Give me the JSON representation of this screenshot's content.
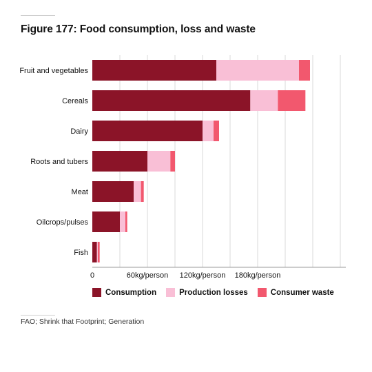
{
  "title": "Figure 177: Food consumption, loss and waste",
  "source": "FAO; Shrink that Footprint; Generation",
  "colors": {
    "consumption": "#8b1428",
    "production_losses": "#f9bfd6",
    "consumer_waste": "#f2586e",
    "grid": "#d9d9d9",
    "axis": "#999999"
  },
  "legend": [
    {
      "label": "Consumption",
      "color": "#8b1428"
    },
    {
      "label": "Production losses",
      "color": "#f9bfd6"
    },
    {
      "label": "Consumer waste",
      "color": "#f2586e"
    }
  ],
  "chart_data": {
    "type": "bar",
    "orientation": "horizontal",
    "stacked": true,
    "categories": [
      "Fruit and vegetables",
      "Cereals",
      "Dairy",
      "Roots and tubers",
      "Meat",
      "Oilcrops/pulses",
      "Fish"
    ],
    "series": [
      {
        "name": "Consumption",
        "values": [
          135,
          172,
          120,
          60,
          45,
          30,
          5
        ]
      },
      {
        "name": "Production losses",
        "values": [
          90,
          30,
          12,
          25,
          8,
          6,
          1
        ]
      },
      {
        "name": "Consumer waste",
        "values": [
          12,
          30,
          6,
          5,
          3,
          2,
          2
        ]
      }
    ],
    "xlim": [
      0,
      276
    ],
    "xticks": [
      0,
      60,
      120,
      180
    ],
    "xtick_labels": [
      "0",
      "60kg/person",
      "120kg/person",
      "180kg/person"
    ],
    "grid_step": 30,
    "legend_position": "bottom",
    "grid": true
  }
}
